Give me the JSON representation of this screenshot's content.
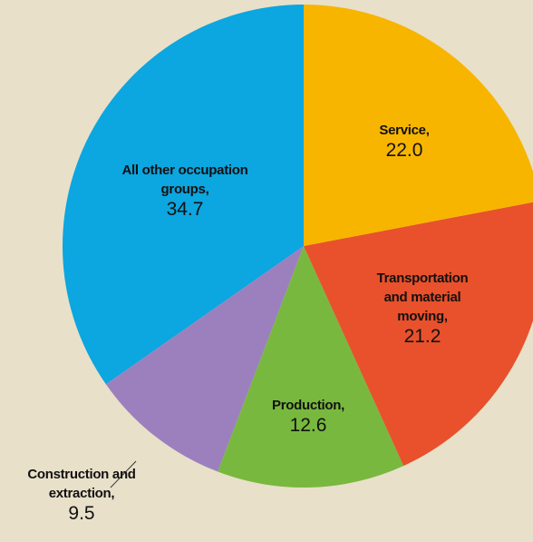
{
  "chart_data": {
    "type": "pie",
    "categories": [
      "Service,",
      "Transportation and material moving,",
      "Production,",
      "Construction and extraction,",
      "All other occupation groups,"
    ],
    "values": [
      22.0,
      21.2,
      12.6,
      9.5,
      34.7
    ],
    "value_labels": [
      "22.0",
      "21.2",
      "12.6",
      "9.5",
      "34.7"
    ],
    "colors": [
      "#f7b500",
      "#e8512b",
      "#79b83f",
      "#9c80be",
      "#0ca6e0"
    ]
  }
}
